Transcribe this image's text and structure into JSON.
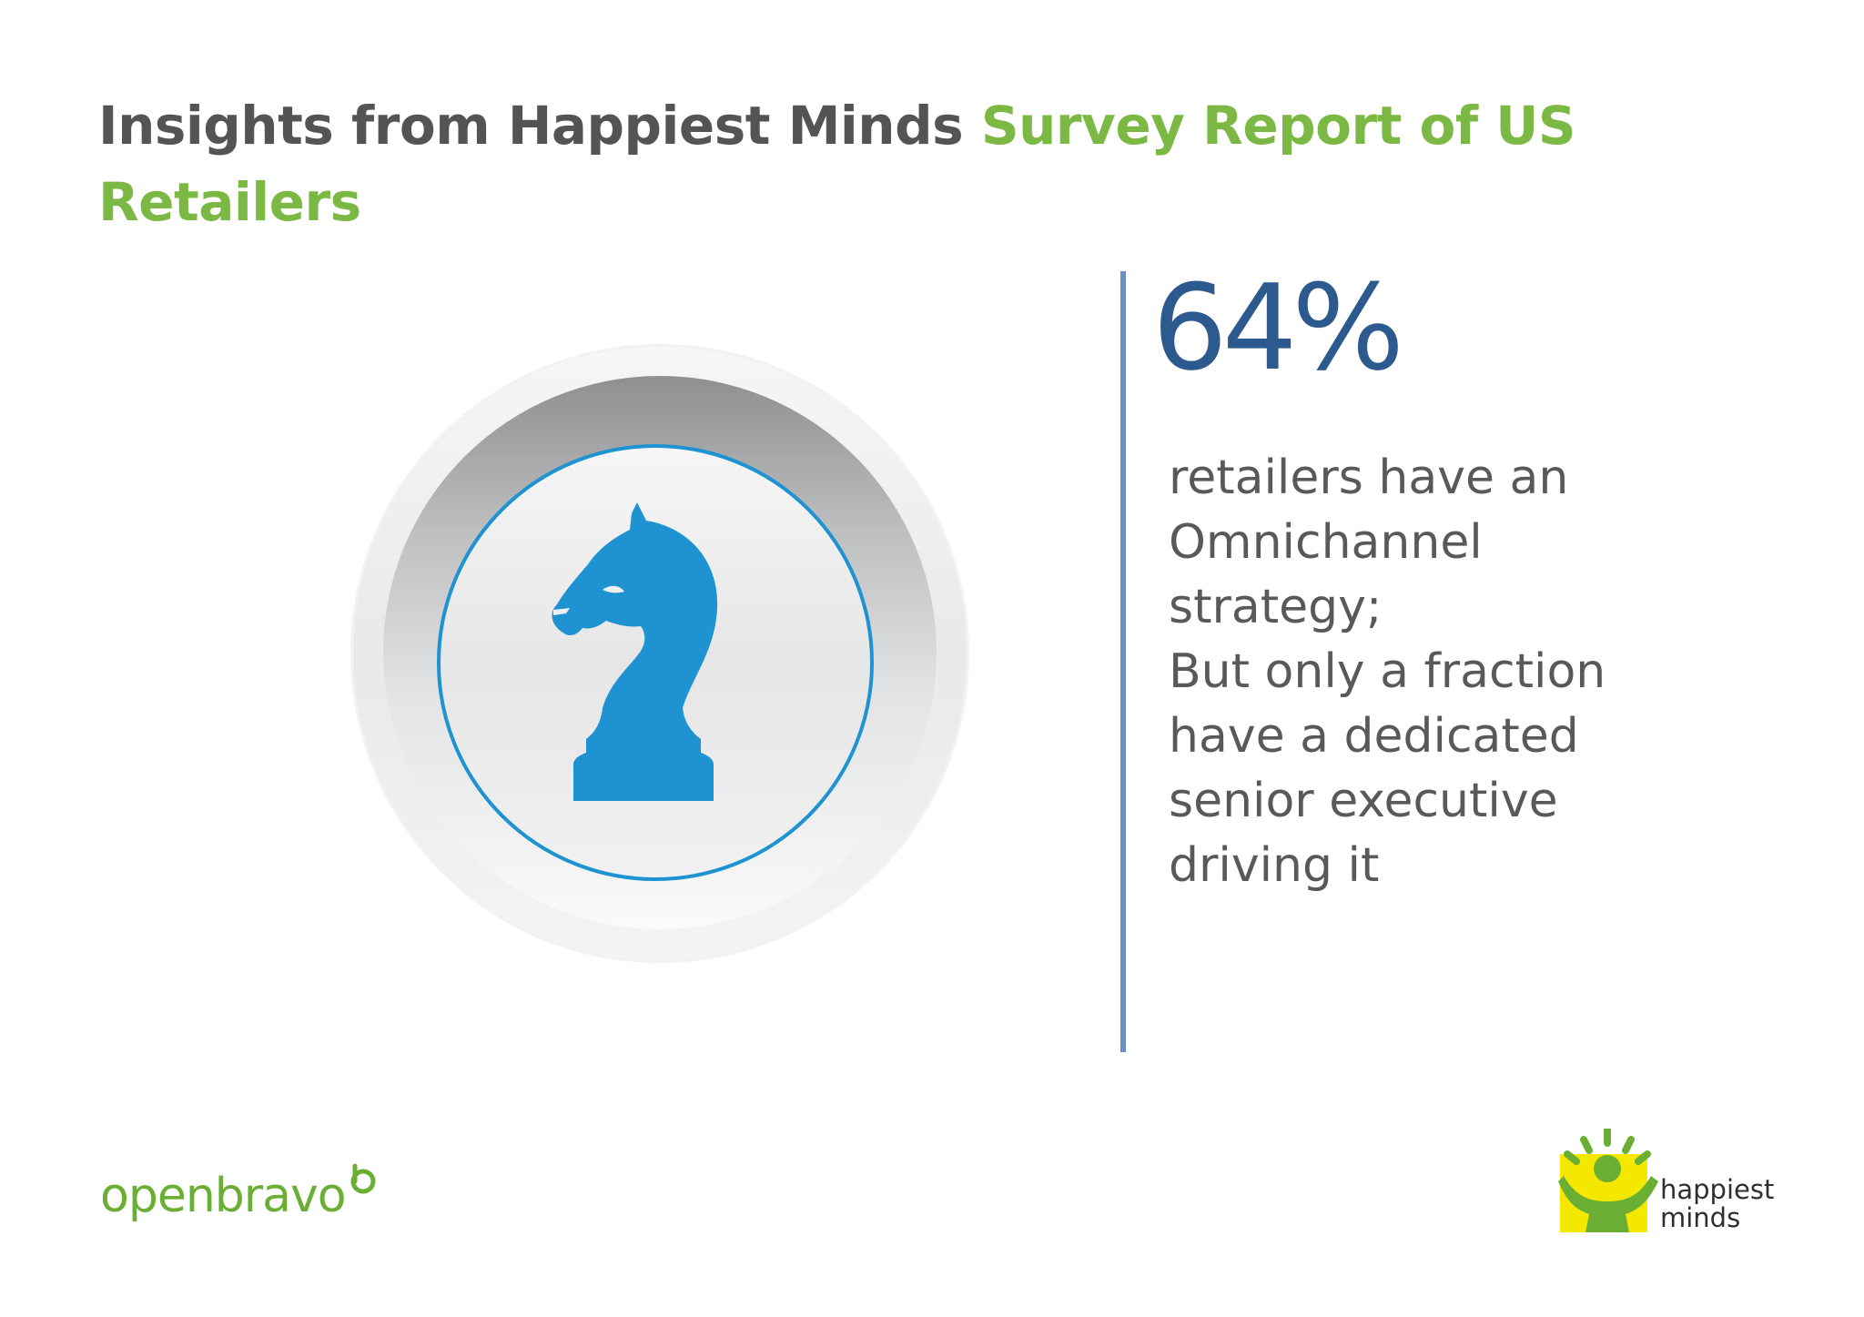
{
  "header": {
    "title_part1": "Insights from Happiest Minds ",
    "title_part2": "Survey Report of US Retailers"
  },
  "colors": {
    "title_gray": "#545454",
    "title_green": "#7cb844",
    "stat_blue": "#2d5a8e",
    "divider_blue": "#6b8fc2",
    "icon_blue": "#1f93d2",
    "body_text": "#595959"
  },
  "badge": {
    "icon": "chess-knight-icon"
  },
  "stat": {
    "value": "64%",
    "lines": [
      "retailers have an",
      "Omnichannel",
      "strategy;",
      "But only a fraction",
      "have a dedicated",
      "senior executive",
      "driving it"
    ]
  },
  "logos": {
    "openbravo": "openbravo",
    "happiest_minds_line1": "happiest",
    "happiest_minds_line2": "minds"
  }
}
